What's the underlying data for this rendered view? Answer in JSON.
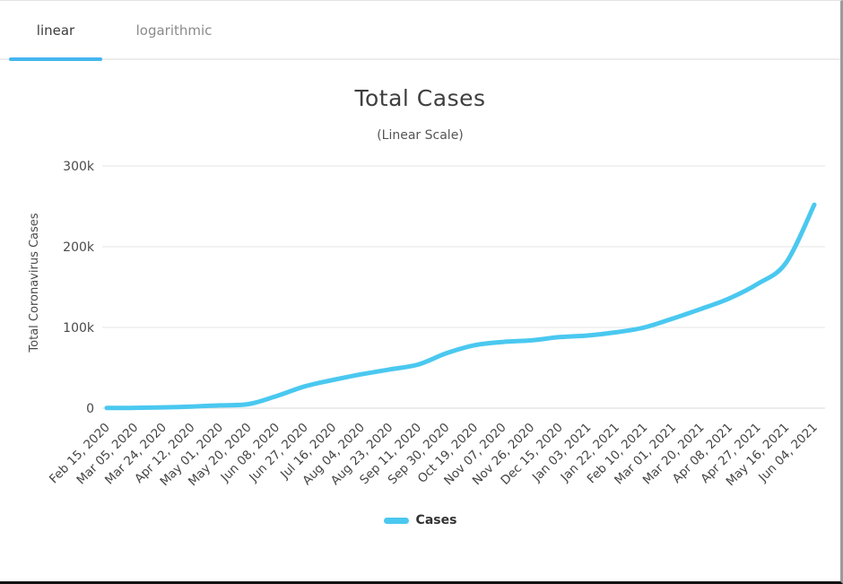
{
  "tabs": [
    {
      "label": "linear",
      "active": true
    },
    {
      "label": "logarithmic",
      "active": false
    }
  ],
  "ui": {
    "accent_color": "#45b6f0"
  },
  "chart_data": {
    "type": "line",
    "title": "Total Cases",
    "subtitle": "(Linear Scale)",
    "xlabel": "",
    "ylabel": "Total Coronavirus Cases",
    "ylim": [
      0,
      300000
    ],
    "grid": true,
    "legend_position": "bottom",
    "yticks": [
      {
        "value": 0,
        "label": "0"
      },
      {
        "value": 100000,
        "label": "100k"
      },
      {
        "value": 200000,
        "label": "200k"
      },
      {
        "value": 300000,
        "label": "300k"
      }
    ],
    "categories": [
      "Feb 15, 2020",
      "Mar 05, 2020",
      "Mar 24, 2020",
      "Apr 12, 2020",
      "May 01, 2020",
      "May 20, 2020",
      "Jun 08, 2020",
      "Jun 27, 2020",
      "Jul 16, 2020",
      "Aug 04, 2020",
      "Aug 23, 2020",
      "Sep 11, 2020",
      "Sep 30, 2020",
      "Oct 19, 2020",
      "Nov 07, 2020",
      "Nov 26, 2020",
      "Dec 15, 2020",
      "Jan 03, 2021",
      "Jan 22, 2021",
      "Feb 10, 2021",
      "Mar 01, 2021",
      "Mar 20, 2021",
      "Apr 08, 2021",
      "Apr 27, 2021",
      "May 16, 2021",
      "Jun 04, 2021"
    ],
    "series": [
      {
        "name": "Cases",
        "color": "#4ac8f0",
        "values": [
          200,
          400,
          1000,
          2000,
          3500,
          5000,
          15000,
          27000,
          35000,
          42000,
          48000,
          54000,
          68000,
          78000,
          82000,
          84000,
          88000,
          90000,
          94000,
          100000,
          111000,
          123000,
          136000,
          154000,
          180000,
          252000
        ]
      }
    ]
  }
}
